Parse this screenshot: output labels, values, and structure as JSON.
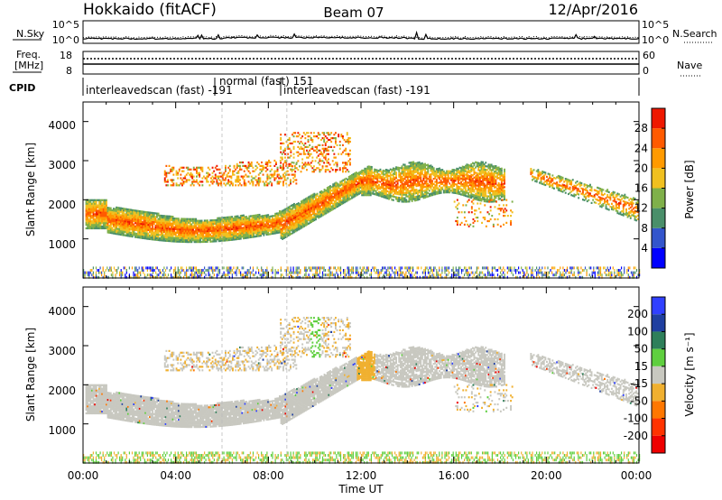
{
  "header": {
    "station": "Hokkaido (fitACF)",
    "beam": "Beam 07",
    "date": "12/Apr/2016"
  },
  "noise_panel": {
    "left_label": "N.Sky",
    "right_label": "N.Search",
    "left_ticks": [
      "10^5",
      "10^0"
    ],
    "right_ticks": [
      "10^5",
      "10^0"
    ]
  },
  "freq_panel": {
    "left_label_line1": "Freq.",
    "left_label_line2": "[MHz]",
    "right_label": "Nave",
    "left_ticks": [
      "18",
      "8"
    ],
    "right_ticks": [
      "60",
      "0"
    ]
  },
  "cpid": {
    "label": "CPID",
    "segments": [
      {
        "text": "interleavedscan (fast) -191",
        "start_hour": 0,
        "end_hour": 6
      },
      {
        "text": "normal (fast) 151",
        "start_hour": 6,
        "end_hour": 8.8
      },
      {
        "text": "interleavedscan (fast) -191",
        "start_hour": 8.8,
        "end_hour": 24
      }
    ]
  },
  "colors": {
    "power_scale": [
      "#0000ff",
      "#3355cc",
      "#4a8f6a",
      "#7fb04a",
      "#f0c020",
      "#ff9a00",
      "#ff5a00",
      "#ee1800"
    ],
    "velocity_scale": [
      "#ee0000",
      "#ff3300",
      "#ff7700",
      "#f0b030",
      "#c8c8c0",
      "#5fcf3f",
      "#2e7f5a",
      "#1f3fa0",
      "#3040ff"
    ],
    "ground_scatter": "#c8c8c0"
  },
  "chart_data": [
    {
      "type": "heatmap",
      "name": "power",
      "ylabel": "Slant Range [km]",
      "x_range_hours": [
        0,
        24
      ],
      "ylim": [
        0,
        4500
      ],
      "yticks": [
        1000,
        2000,
        3000,
        4000
      ],
      "colorbar_label": "Power [dB]",
      "colorbar_range": [
        0,
        32
      ],
      "colorbar_ticks": [
        4,
        8,
        12,
        16,
        20,
        24,
        28
      ]
    },
    {
      "type": "heatmap",
      "name": "velocity",
      "ylabel": "Slant Range [km]",
      "xlabel": "Time UT",
      "x_range_hours": [
        0,
        24
      ],
      "ylim": [
        0,
        4500
      ],
      "yticks": [
        1000,
        2000,
        3000,
        4000
      ],
      "xticks": [
        "00:00",
        "04:00",
        "08:00",
        "12:00",
        "16:00",
        "20:00",
        "00:00"
      ],
      "colorbar_label": "Velocity [m s⁻¹]",
      "colorbar_ticks": [
        "200",
        "100",
        "50",
        "15",
        "-15",
        "-50",
        "-100",
        "-200"
      ]
    }
  ]
}
